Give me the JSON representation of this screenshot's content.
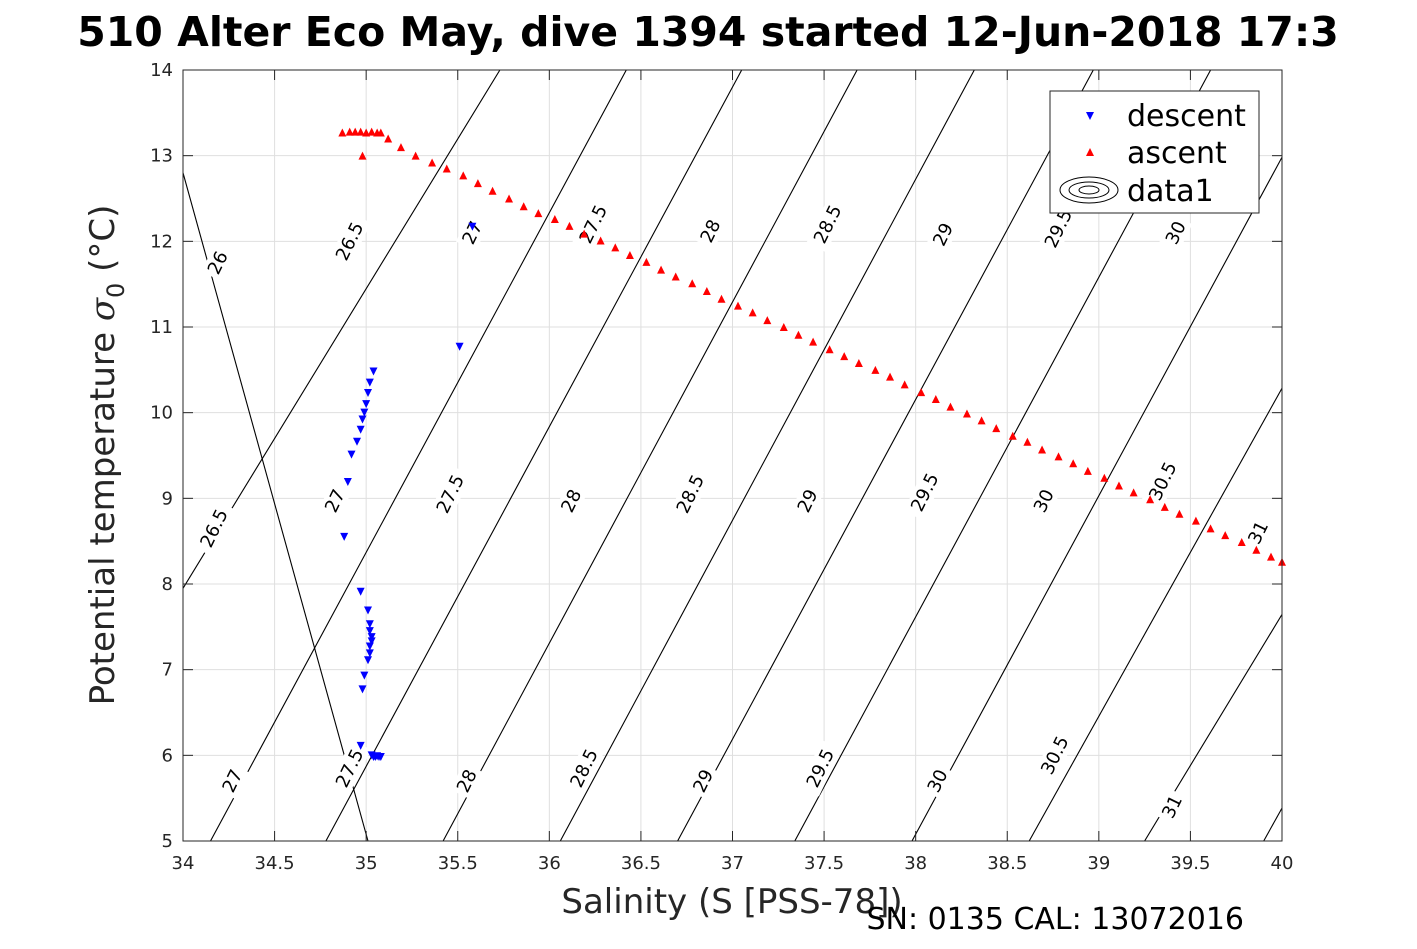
{
  "chart_data": {
    "type": "scatter",
    "title": "510 Alter Eco May, dive 1394 started 12-Jun-2018 17:3",
    "xlabel": "Salinity (S [PSS-78])",
    "ylabel_main": "Potential temperature ",
    "ylabel_sigma": "σ",
    "ylabel_sub": "0",
    "ylabel_unit": " (°C)",
    "footer": "SN: 0135  CAL: 13072016",
    "xlim": [
      34,
      40
    ],
    "ylim": [
      5,
      14
    ],
    "x_ticks": [
      34,
      34.5,
      35,
      35.5,
      36,
      36.5,
      37,
      37.5,
      38,
      38.5,
      39,
      39.5,
      40
    ],
    "x_tick_labels": [
      "34",
      "34.5",
      "35",
      "35.5",
      "36",
      "36.5",
      "37",
      "37.5",
      "38",
      "38.5",
      "39",
      "39.5",
      "40"
    ],
    "y_ticks": [
      5,
      6,
      7,
      8,
      9,
      10,
      11,
      12,
      13,
      14
    ],
    "y_tick_labels": [
      "5",
      "6",
      "7",
      "8",
      "9",
      "10",
      "11",
      "12",
      "13",
      "14"
    ],
    "grid": true,
    "legend_position": "top-right",
    "legend": [
      {
        "label": "descent",
        "marker": "triangle-down",
        "color": "#0000ff"
      },
      {
        "label": "ascent",
        "marker": "triangle-up",
        "color": "#ff0000"
      },
      {
        "label": "data1",
        "marker": "contour",
        "color": "#000000"
      }
    ],
    "contours": {
      "name": "data1",
      "color": "#000000",
      "lines": [
        {
          "label": "26",
          "points": [
            [
              34,
              12.8
            ],
            [
              35.01,
              5
            ]
          ]
        },
        {
          "label": "26.5",
          "points": [
            [
              34,
              7.95
            ],
            [
              35.73,
              14
            ]
          ]
        },
        {
          "label": "27",
          "points": [
            [
              34.15,
              5
            ],
            [
              36.42,
              14
            ]
          ]
        },
        {
          "label": "27.5",
          "points": [
            [
              34.78,
              5
            ],
            [
              37.05,
              14
            ]
          ]
        },
        {
          "label": "28",
          "points": [
            [
              35.42,
              5
            ],
            [
              37.68,
              14
            ]
          ]
        },
        {
          "label": "28.5",
          "points": [
            [
              36.06,
              5
            ],
            [
              38.32,
              14
            ]
          ]
        },
        {
          "label": "29",
          "points": [
            [
              36.7,
              5
            ],
            [
              38.97,
              14
            ]
          ]
        },
        {
          "label": "29.5",
          "points": [
            [
              37.34,
              5
            ],
            [
              39.61,
              14
            ]
          ]
        },
        {
          "label": "30",
          "points": [
            [
              37.98,
              5
            ],
            [
              40.03,
              13.1
            ]
          ]
        },
        {
          "label": "30.5",
          "points": [
            [
              38.62,
              5
            ],
            [
              40.03,
              10.4
            ]
          ]
        },
        {
          "label": "31",
          "points": [
            [
              39.25,
              5
            ],
            [
              40.03,
              7.75
            ]
          ]
        },
        {
          "label": "",
          "points": [
            [
              39.9,
              5
            ],
            [
              40.03,
              5.5
            ]
          ]
        }
      ],
      "labels": [
        {
          "text": "26",
          "x": 34.19,
          "y": 11.75
        },
        {
          "text": "26.5",
          "x": 34.91,
          "y": 12.0
        },
        {
          "text": "27",
          "x": 35.58,
          "y": 12.1
        },
        {
          "text": "27.5",
          "x": 36.24,
          "y": 12.2
        },
        {
          "text": "28",
          "x": 36.88,
          "y": 12.12
        },
        {
          "text": "28.5",
          "x": 37.52,
          "y": 12.2
        },
        {
          "text": "29",
          "x": 38.15,
          "y": 12.08
        },
        {
          "text": "29.5",
          "x": 38.78,
          "y": 12.15
        },
        {
          "text": "30",
          "x": 39.42,
          "y": 12.1
        },
        {
          "text": "26.5",
          "x": 34.17,
          "y": 8.65
        },
        {
          "text": "27",
          "x": 34.83,
          "y": 8.97
        },
        {
          "text": "27.5",
          "x": 35.46,
          "y": 9.05
        },
        {
          "text": "28",
          "x": 36.12,
          "y": 8.97
        },
        {
          "text": "28.5",
          "x": 36.77,
          "y": 9.05
        },
        {
          "text": "29",
          "x": 37.41,
          "y": 8.97
        },
        {
          "text": "29.5",
          "x": 38.05,
          "y": 9.07
        },
        {
          "text": "30",
          "x": 38.7,
          "y": 8.97
        },
        {
          "text": "30.5",
          "x": 39.35,
          "y": 9.2
        },
        {
          "text": "31",
          "x": 39.87,
          "y": 8.6
        },
        {
          "text": "27",
          "x": 34.27,
          "y": 5.7
        },
        {
          "text": "27.5",
          "x": 34.91,
          "y": 5.85
        },
        {
          "text": "28",
          "x": 35.55,
          "y": 5.7
        },
        {
          "text": "28.5",
          "x": 36.19,
          "y": 5.85
        },
        {
          "text": "29",
          "x": 36.84,
          "y": 5.7
        },
        {
          "text": "29.5",
          "x": 37.48,
          "y": 5.85
        },
        {
          "text": "30",
          "x": 38.12,
          "y": 5.7
        },
        {
          "text": "30.5",
          "x": 38.76,
          "y": 6.0
        },
        {
          "text": "31",
          "x": 39.4,
          "y": 5.4
        }
      ]
    },
    "series": [
      {
        "name": "descent",
        "marker": "triangle-down",
        "color": "#0000ff",
        "x": [
          35.58,
          35.51,
          35.04,
          35.02,
          35.01,
          35.0,
          34.99,
          34.98,
          34.97,
          34.95,
          34.92,
          34.9,
          34.88,
          34.97,
          35.01,
          35.02,
          35.02,
          35.03,
          35.03,
          35.02,
          35.02,
          35.01,
          34.99,
          34.98,
          34.97,
          35.03,
          35.04,
          35.05,
          35.06,
          35.07,
          35.08
        ],
        "y": [
          12.17,
          10.77,
          10.48,
          10.35,
          10.23,
          10.1,
          10.0,
          9.92,
          9.8,
          9.66,
          9.51,
          9.19,
          8.55,
          7.91,
          7.69,
          7.53,
          7.45,
          7.38,
          7.33,
          7.27,
          7.19,
          7.11,
          6.93,
          6.77,
          6.11,
          6.0,
          5.98,
          5.98,
          5.99,
          5.98,
          5.98
        ]
      },
      {
        "name": "ascent",
        "marker": "triangle-up",
        "color": "#ff0000",
        "x": [
          34.87,
          34.91,
          34.94,
          34.97,
          35.0,
          35.03,
          35.06,
          35.08,
          34.98,
          35.12,
          35.19,
          35.27,
          35.36,
          35.44,
          35.53,
          35.61,
          35.69,
          35.78,
          35.86,
          35.94,
          36.03,
          36.11,
          36.19,
          36.28,
          36.36,
          36.44,
          36.53,
          36.61,
          36.69,
          36.78,
          36.86,
          36.94,
          37.03,
          37.11,
          37.19,
          37.28,
          37.36,
          37.44,
          37.53,
          37.61,
          37.69,
          37.78,
          37.86,
          37.94,
          38.03,
          38.11,
          38.19,
          38.28,
          38.36,
          38.44,
          38.53,
          38.61,
          38.69,
          38.78,
          38.86,
          38.94,
          39.03,
          39.11,
          39.19,
          39.28,
          39.36,
          39.44,
          39.53,
          39.61,
          39.69,
          39.78,
          39.86,
          39.94,
          40.0
        ],
        "y": [
          13.27,
          13.28,
          13.28,
          13.28,
          13.27,
          13.28,
          13.27,
          13.27,
          13.0,
          13.2,
          13.1,
          13.0,
          12.92,
          12.85,
          12.77,
          12.68,
          12.59,
          12.5,
          12.41,
          12.33,
          12.26,
          12.18,
          12.09,
          12.01,
          11.93,
          11.84,
          11.76,
          11.67,
          11.59,
          11.51,
          11.42,
          11.33,
          11.25,
          11.17,
          11.08,
          11.0,
          10.91,
          10.83,
          10.74,
          10.66,
          10.58,
          10.5,
          10.42,
          10.33,
          10.24,
          10.16,
          10.07,
          9.99,
          9.91,
          9.82,
          9.73,
          9.66,
          9.57,
          9.49,
          9.41,
          9.32,
          9.24,
          9.15,
          9.07,
          8.99,
          8.9,
          8.82,
          8.74,
          8.65,
          8.57,
          8.49,
          8.4,
          8.32,
          8.26
        ]
      }
    ]
  }
}
